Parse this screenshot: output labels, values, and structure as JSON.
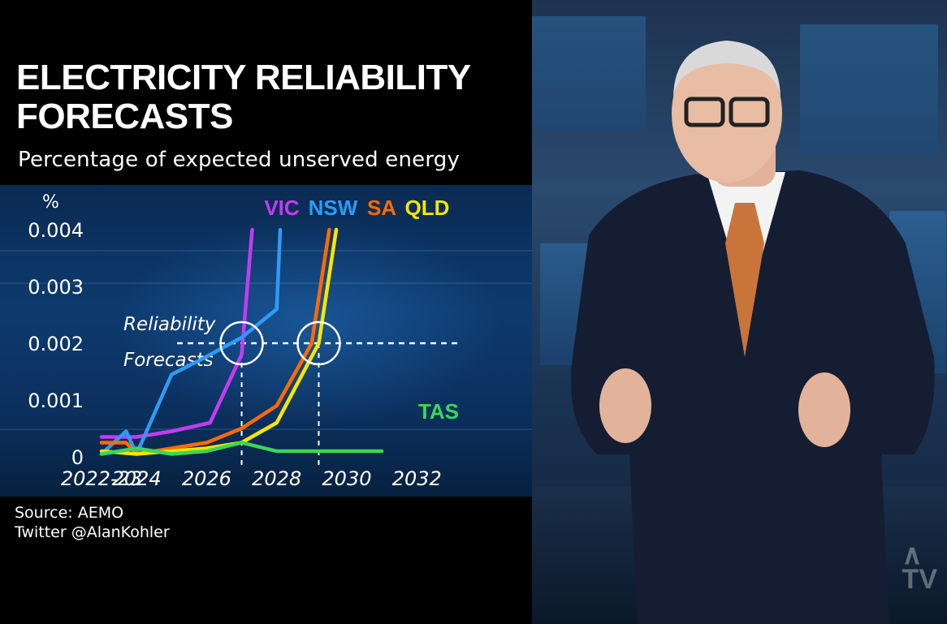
{
  "chart_data": {
    "type": "line",
    "title": "ELECTRICITY RELIABILITY FORECASTS",
    "subtitle": "Percentage of expected unserved energy",
    "ylabel": "%",
    "xlabel": "",
    "x_tick_labels": [
      "2022-23",
      "2024",
      "2026",
      "2028",
      "2030",
      "2032"
    ],
    "x_tick_values": [
      2023,
      2024,
      2026,
      2028,
      2030,
      2032
    ],
    "y_ticks": [
      {
        "value": 0,
        "label": "0"
      },
      {
        "value": 0.001,
        "label": "0.001"
      },
      {
        "value": 0.002,
        "label": "0.002"
      },
      {
        "value": 0.003,
        "label": "0.003"
      },
      {
        "value": 0.004,
        "label": "0.004"
      }
    ],
    "xlim": [
      2023,
      2033.2
    ],
    "ylim": [
      0,
      0.004
    ],
    "grid": false,
    "legend": "inline labels at top of series",
    "annotation": {
      "label_line1": "Reliability",
      "label_line2": "Forecasts",
      "value": 0.002,
      "crossings": [
        {
          "x": 2027.0,
          "y": 0.002
        },
        {
          "x": 2029.2,
          "y": 0.002
        }
      ]
    },
    "series": [
      {
        "name": "VIC",
        "color": "#c33cf2",
        "x": [
          2023,
          2024,
          2025,
          2026.1,
          2027,
          2027.3
        ],
        "y": [
          0.00035,
          0.00035,
          0.00045,
          0.0006,
          0.0018,
          0.004
        ]
      },
      {
        "name": "NSW",
        "color": "#2f9bf5",
        "x": [
          2023,
          2023.7,
          2024,
          2025,
          2025.8,
          2027,
          2028,
          2028.1
        ],
        "y": [
          5e-05,
          0.00045,
          5e-05,
          0.00145,
          0.0017,
          0.0021,
          0.0026,
          0.004
        ]
      },
      {
        "name": "SA",
        "color": "#ff6a00",
        "x": [
          2023,
          2023.7,
          2024,
          2025,
          2026,
          2027,
          2028,
          2029,
          2029.5
        ],
        "y": [
          0.00025,
          0.00025,
          5e-05,
          0.00015,
          0.00025,
          0.0005,
          0.0009,
          0.002,
          0.004
        ]
      },
      {
        "name": "QLD",
        "color": "#f7e600",
        "x": [
          2023,
          2024,
          2025,
          2026,
          2027,
          2028,
          2029.2,
          2029.7
        ],
        "y": [
          0.0001,
          5e-05,
          0.0001,
          0.00015,
          0.00025,
          0.0006,
          0.002,
          0.004
        ]
      },
      {
        "name": "TAS",
        "color": "#3cd655",
        "x": [
          2023,
          2024,
          2025,
          2026,
          2027,
          2028,
          2029,
          2030,
          2031
        ],
        "y": [
          5e-05,
          0.00015,
          5e-05,
          0.0001,
          0.00025,
          0.0001,
          0.0001,
          0.0001,
          0.0001
        ]
      }
    ]
  },
  "source": {
    "line1": "Source: AEMO",
    "line2": "Twitter @AlanKohler"
  }
}
